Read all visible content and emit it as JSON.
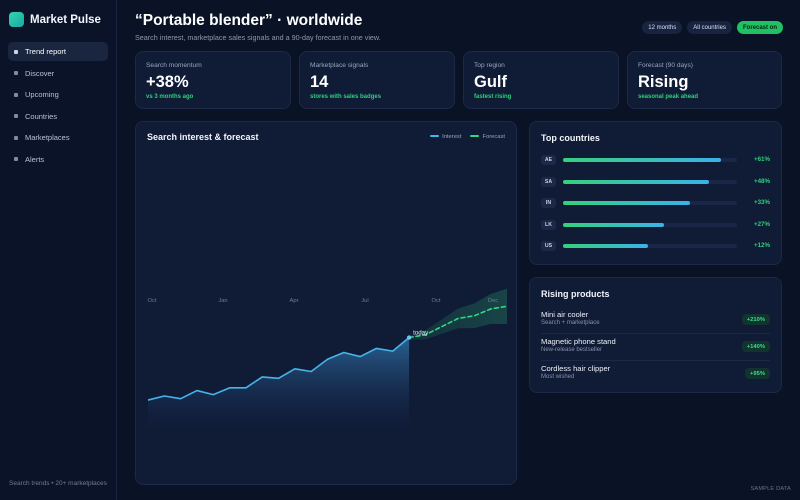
{
  "brand": {
    "name": "Market Pulse"
  },
  "sidebar": {
    "items": [
      {
        "label": "Trend report",
        "active": true
      },
      {
        "label": "Discover"
      },
      {
        "label": "Upcoming"
      },
      {
        "label": "Countries"
      },
      {
        "label": "Marketplaces"
      },
      {
        "label": "Alerts"
      }
    ],
    "footer": "Search trends • 20+ marketplaces"
  },
  "header": {
    "title": "“Portable blender” · worldwide",
    "subtitle": "Search interest, marketplace sales signals and a 90-day forecast in one view.",
    "chips": [
      {
        "label": "12 months"
      },
      {
        "label": "All countries"
      },
      {
        "label": "Forecast on",
        "active": true
      }
    ]
  },
  "stats": [
    {
      "label": "Search momentum",
      "value": "+38%",
      "sub": "vs 3 months ago"
    },
    {
      "label": "Marketplace signals",
      "value": "14",
      "sub": "stores with sales badges"
    },
    {
      "label": "Top region",
      "value": "Gulf",
      "sub": "fastest rising"
    },
    {
      "label": "Forecast (90 days)",
      "value": "Rising",
      "sub": "seasonal peak ahead"
    }
  ],
  "trend_panel": {
    "title": "Search interest & forecast",
    "legend": {
      "interest": "Interest",
      "forecast": "Forecast"
    },
    "today_label": "today"
  },
  "chart_data": {
    "type": "line",
    "title": "Search interest & forecast",
    "x_tick_labels": [
      "Oct",
      "Jan",
      "Apr",
      "Jul",
      "Oct",
      "Dec"
    ],
    "ylim": [
      0,
      100
    ],
    "grid": false,
    "legend_position": "top-right",
    "series": [
      {
        "name": "Interest",
        "color": "#46b4ea",
        "x": [
          0,
          1,
          2,
          3,
          4,
          5,
          6,
          7,
          8,
          9,
          10,
          11,
          12,
          13,
          14,
          15,
          16
        ],
        "values": [
          22,
          25,
          23,
          29,
          26,
          31,
          31,
          39,
          38,
          45,
          43,
          52,
          57,
          54,
          60,
          58,
          68
        ]
      },
      {
        "name": "Forecast",
        "color": "#31d77e",
        "x": [
          16,
          17,
          18,
          19,
          20,
          21,
          22
        ],
        "values": [
          68,
          70,
          76,
          82,
          84,
          89,
          91
        ]
      }
    ]
  },
  "countries_panel": {
    "title": "Top countries",
    "rows": [
      {
        "code": "AE",
        "change": "+61%",
        "level": 0.91
      },
      {
        "code": "SA",
        "change": "+48%",
        "level": 0.84
      },
      {
        "code": "IN",
        "change": "+33%",
        "level": 0.73
      },
      {
        "code": "LK",
        "change": "+27%",
        "level": 0.58
      },
      {
        "code": "US",
        "change": "+12%",
        "level": 0.49
      }
    ],
    "colors": {
      "start": "#36d07c",
      "end": "#3bb2e8"
    }
  },
  "products_panel": {
    "title": "Rising products",
    "items": [
      {
        "name": "Mini air cooler",
        "sub": "Search + marketplace",
        "change": "+210%"
      },
      {
        "name": "Magnetic phone stand",
        "sub": "New-release bestseller",
        "change": "+140%"
      },
      {
        "name": "Cordless hair clipper",
        "sub": "Most wished",
        "change": "+95%"
      }
    ]
  },
  "footer": {
    "sample_label": "SAMPLE DATA"
  }
}
